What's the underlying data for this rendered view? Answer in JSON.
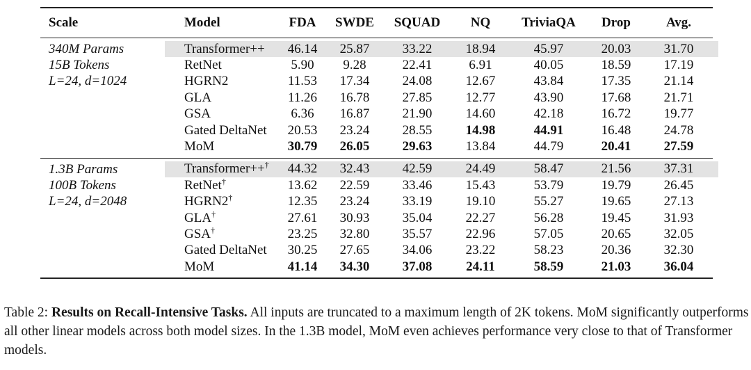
{
  "table": {
    "headers": [
      "Scale",
      "Model",
      "FDA",
      "SWDE",
      "SQUAD",
      "NQ",
      "TriviaQA",
      "Drop",
      "Avg."
    ],
    "groups": [
      {
        "scale_lines": [
          "340M Params",
          "15B Tokens",
          "L=24, d=1024"
        ],
        "rows": [
          {
            "model": "Transformer++",
            "dagger": "",
            "vals": [
              "46.14",
              "25.87",
              "33.22",
              "18.94",
              "45.97",
              "20.03",
              "31.70"
            ],
            "bold": [
              false,
              false,
              false,
              false,
              false,
              false,
              false
            ],
            "highlight": true
          },
          {
            "model": "RetNet",
            "dagger": "",
            "vals": [
              "5.90",
              "9.28",
              "22.41",
              "6.91",
              "40.05",
              "18.59",
              "17.19"
            ],
            "bold": [
              false,
              false,
              false,
              false,
              false,
              false,
              false
            ],
            "highlight": false
          },
          {
            "model": "HGRN2",
            "dagger": "",
            "vals": [
              "11.53",
              "17.34",
              "24.08",
              "12.67",
              "43.84",
              "17.35",
              "21.14"
            ],
            "bold": [
              false,
              false,
              false,
              false,
              false,
              false,
              false
            ],
            "highlight": false
          },
          {
            "model": "GLA",
            "dagger": "",
            "vals": [
              "11.26",
              "16.78",
              "27.85",
              "12.77",
              "43.90",
              "17.68",
              "21.71"
            ],
            "bold": [
              false,
              false,
              false,
              false,
              false,
              false,
              false
            ],
            "highlight": false
          },
          {
            "model": "GSA",
            "dagger": "",
            "vals": [
              "6.36",
              "16.87",
              "21.90",
              "14.60",
              "42.18",
              "16.72",
              "19.77"
            ],
            "bold": [
              false,
              false,
              false,
              false,
              false,
              false,
              false
            ],
            "highlight": false
          },
          {
            "model": "Gated DeltaNet",
            "dagger": "",
            "vals": [
              "20.53",
              "23.24",
              "28.55",
              "14.98",
              "44.91",
              "16.48",
              "24.78"
            ],
            "bold": [
              false,
              false,
              false,
              true,
              true,
              false,
              false
            ],
            "highlight": false
          },
          {
            "model": "MoM",
            "dagger": "",
            "vals": [
              "30.79",
              "26.05",
              "29.63",
              "13.84",
              "44.79",
              "20.41",
              "27.59"
            ],
            "bold": [
              true,
              true,
              true,
              false,
              false,
              true,
              true
            ],
            "highlight": false
          }
        ]
      },
      {
        "scale_lines": [
          "1.3B Params",
          "100B Tokens",
          "L=24, d=2048"
        ],
        "rows": [
          {
            "model": "Transformer++",
            "dagger": "†",
            "vals": [
              "44.32",
              "32.43",
              "42.59",
              "24.49",
              "58.47",
              "21.56",
              "37.31"
            ],
            "bold": [
              false,
              false,
              false,
              false,
              false,
              false,
              false
            ],
            "highlight": true
          },
          {
            "model": "RetNet",
            "dagger": "†",
            "vals": [
              "13.62",
              "22.59",
              "33.46",
              "15.43",
              "53.79",
              "19.79",
              "26.45"
            ],
            "bold": [
              false,
              false,
              false,
              false,
              false,
              false,
              false
            ],
            "highlight": false
          },
          {
            "model": "HGRN2",
            "dagger": "†",
            "vals": [
              "12.35",
              "23.24",
              "33.19",
              "19.10",
              "55.27",
              "19.65",
              "27.13"
            ],
            "bold": [
              false,
              false,
              false,
              false,
              false,
              false,
              false
            ],
            "highlight": false
          },
          {
            "model": "GLA",
            "dagger": "†",
            "vals": [
              "27.61",
              "30.93",
              "35.04",
              "22.27",
              "56.28",
              "19.45",
              "31.93"
            ],
            "bold": [
              false,
              false,
              false,
              false,
              false,
              false,
              false
            ],
            "highlight": false
          },
          {
            "model": "GSA",
            "dagger": "†",
            "vals": [
              "23.25",
              "32.80",
              "35.57",
              "22.96",
              "57.05",
              "20.65",
              "32.05"
            ],
            "bold": [
              false,
              false,
              false,
              false,
              false,
              false,
              false
            ],
            "highlight": false
          },
          {
            "model": "Gated DeltaNet",
            "dagger": "",
            "vals": [
              "30.25",
              "27.65",
              "34.06",
              "23.22",
              "58.23",
              "20.36",
              "32.30"
            ],
            "bold": [
              false,
              false,
              false,
              false,
              false,
              false,
              false
            ],
            "highlight": false
          },
          {
            "model": "MoM",
            "dagger": "",
            "vals": [
              "41.14",
              "34.30",
              "37.08",
              "24.11",
              "58.59",
              "21.03",
              "36.04"
            ],
            "bold": [
              true,
              true,
              true,
              true,
              true,
              true,
              true
            ],
            "highlight": false
          }
        ]
      }
    ]
  },
  "caption": {
    "label": "Table 2:",
    "lead": "Results on Recall-Intensive Tasks.",
    "text": "All inputs are truncated to a maximum length of 2K tokens. MoM significantly outperforms all other linear models across both model sizes. In the 1.3B model, MoM even achieves performance very close to that of Transformer models."
  }
}
